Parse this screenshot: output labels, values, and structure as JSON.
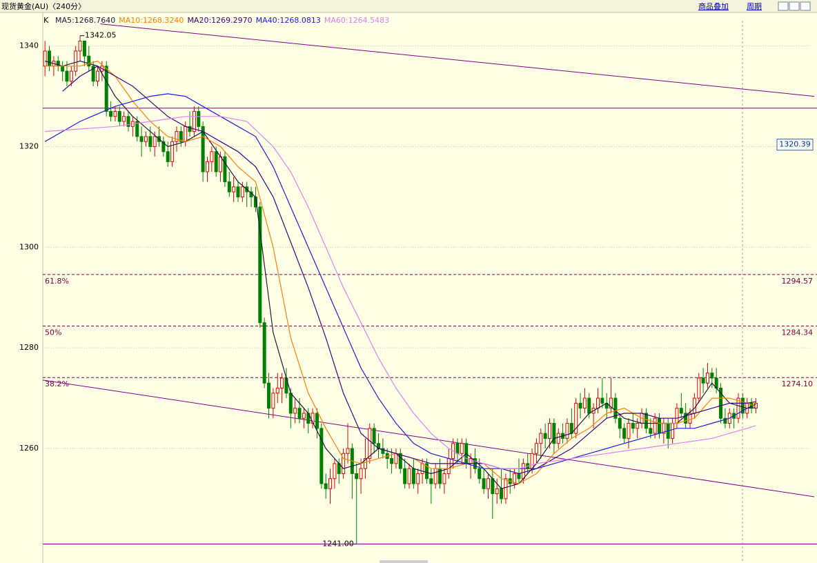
{
  "header": {
    "title": "现货黄金(AU)〈240分〉",
    "buttons": [
      "商品叠加",
      "周期"
    ]
  },
  "chart_data": {
    "type": "candlestick",
    "label": "K",
    "up_color": "#e00000",
    "down_color": "#008000",
    "xlim": [
      -0.5,
      175.3
    ],
    "ylim": [
      1240.8,
      1346.4
    ],
    "yticks": [
      1260,
      1280,
      1300,
      1320,
      1340
    ],
    "grid": true,
    "ohlc": [
      [
        1336,
        1341,
        1334,
        1339
      ],
      [
        1339,
        1340,
        1335,
        1336
      ],
      [
        1336,
        1338,
        1334,
        1337
      ],
      [
        1337,
        1338,
        1335,
        1336
      ],
      [
        1336,
        1337,
        1333,
        1335
      ],
      [
        1335,
        1337,
        1332,
        1333
      ],
      [
        1333,
        1336,
        1332,
        1335
      ],
      [
        1335,
        1340,
        1334,
        1339
      ],
      [
        1339,
        1342.05,
        1337,
        1341
      ],
      [
        1341,
        1341,
        1336,
        1338
      ],
      [
        1338,
        1340,
        1335,
        1336
      ],
      [
        1336,
        1337,
        1332,
        1333
      ],
      [
        1333,
        1336,
        1332,
        1335
      ],
      [
        1335,
        1337,
        1333,
        1336
      ],
      [
        1336,
        1337,
        1326,
        1327
      ],
      [
        1327,
        1329,
        1325,
        1326
      ],
      [
        1326,
        1328,
        1325,
        1327
      ],
      [
        1327,
        1328,
        1324,
        1325
      ],
      [
        1325,
        1327,
        1324,
        1326
      ],
      [
        1326,
        1327,
        1323,
        1324
      ],
      [
        1324,
        1326,
        1322,
        1325
      ],
      [
        1325,
        1326,
        1321,
        1322
      ],
      [
        1322,
        1324,
        1318,
        1321
      ],
      [
        1321,
        1323,
        1320,
        1322
      ],
      [
        1322,
        1324,
        1319,
        1320
      ],
      [
        1320,
        1323,
        1318,
        1322
      ],
      [
        1322,
        1324,
        1320,
        1321
      ],
      [
        1321,
        1322,
        1318,
        1319
      ],
      [
        1319,
        1321,
        1316,
        1317
      ],
      [
        1317,
        1322,
        1316,
        1321
      ],
      [
        1321,
        1324,
        1319,
        1323
      ],
      [
        1323,
        1324,
        1320,
        1321
      ],
      [
        1321,
        1325,
        1320,
        1324
      ],
      [
        1324,
        1327,
        1322,
        1323
      ],
      [
        1323,
        1328,
        1322,
        1327
      ],
      [
        1327,
        1328,
        1323,
        1324
      ],
      [
        1324,
        1325,
        1313,
        1315
      ],
      [
        1315,
        1318,
        1313,
        1317
      ],
      [
        1317,
        1320,
        1315,
        1319
      ],
      [
        1319,
        1320,
        1314,
        1315
      ],
      [
        1315,
        1319,
        1313,
        1318
      ],
      [
        1318,
        1319,
        1312,
        1313
      ],
      [
        1313,
        1315,
        1310,
        1311
      ],
      [
        1311,
        1314,
        1309,
        1312
      ],
      [
        1312,
        1313,
        1309,
        1310
      ],
      [
        1310,
        1313,
        1309,
        1312
      ],
      [
        1312,
        1313,
        1308,
        1311
      ],
      [
        1311,
        1312,
        1308,
        1310
      ],
      [
        1310,
        1312,
        1307,
        1308
      ],
      [
        1308,
        1309,
        1284,
        1285
      ],
      [
        1285,
        1286,
        1272,
        1273
      ],
      [
        1273,
        1275,
        1266,
        1268
      ],
      [
        1268,
        1272,
        1266,
        1271
      ],
      [
        1271,
        1275,
        1269,
        1272
      ],
      [
        1272,
        1275,
        1269,
        1274
      ],
      [
        1274,
        1276,
        1270,
        1271
      ],
      [
        1271,
        1272,
        1264,
        1267
      ],
      [
        1267,
        1270,
        1265,
        1268
      ],
      [
        1268,
        1270,
        1265,
        1266
      ],
      [
        1266,
        1268,
        1264,
        1267
      ],
      [
        1267,
        1268,
        1263,
        1265
      ],
      [
        1265,
        1268,
        1264,
        1267
      ],
      [
        1267,
        1268,
        1262,
        1264
      ],
      [
        1264,
        1265,
        1252,
        1253
      ],
      [
        1253,
        1255,
        1250,
        1252
      ],
      [
        1252,
        1256,
        1249,
        1254
      ],
      [
        1254,
        1258,
        1252,
        1257
      ],
      [
        1257,
        1258,
        1253,
        1255
      ],
      [
        1255,
        1260,
        1254,
        1259
      ],
      [
        1259,
        1265,
        1257,
        1260
      ],
      [
        1260,
        1261,
        1250,
        1255
      ],
      [
        1255,
        1257,
        1241,
        1254
      ],
      [
        1254,
        1258,
        1251,
        1256
      ],
      [
        1256,
        1262,
        1254,
        1258
      ],
      [
        1258,
        1265,
        1257,
        1264
      ],
      [
        1264,
        1265,
        1259,
        1261
      ],
      [
        1261,
        1263,
        1258,
        1260
      ],
      [
        1260,
        1262,
        1258,
        1259
      ],
      [
        1259,
        1260,
        1256,
        1258
      ],
      [
        1258,
        1260,
        1255,
        1257
      ],
      [
        1257,
        1260,
        1256,
        1259
      ],
      [
        1259,
        1260,
        1255,
        1256
      ],
      [
        1256,
        1258,
        1252,
        1253
      ],
      [
        1253,
        1257,
        1252,
        1256
      ],
      [
        1256,
        1258,
        1252,
        1253
      ],
      [
        1253,
        1256,
        1251,
        1255
      ],
      [
        1255,
        1258,
        1253,
        1257
      ],
      [
        1257,
        1258,
        1253,
        1254
      ],
      [
        1254,
        1256,
        1249,
        1253
      ],
      [
        1253,
        1257,
        1252,
        1256
      ],
      [
        1256,
        1258,
        1252,
        1253
      ],
      [
        1253,
        1256,
        1251,
        1255
      ],
      [
        1255,
        1260,
        1254,
        1258
      ],
      [
        1258,
        1262,
        1256,
        1261
      ],
      [
        1261,
        1262,
        1257,
        1259
      ],
      [
        1259,
        1262,
        1257,
        1261
      ],
      [
        1261,
        1262,
        1256,
        1257
      ],
      [
        1257,
        1259,
        1254,
        1258
      ],
      [
        1258,
        1260,
        1255,
        1256
      ],
      [
        1256,
        1258,
        1253,
        1254
      ],
      [
        1254,
        1256,
        1251,
        1252
      ],
      [
        1252,
        1255,
        1250,
        1254
      ],
      [
        1254,
        1256,
        1246,
        1251
      ],
      [
        1251,
        1254,
        1249,
        1252
      ],
      [
        1252,
        1256,
        1249,
        1250
      ],
      [
        1250,
        1255,
        1249,
        1254
      ],
      [
        1254,
        1256,
        1251,
        1253
      ],
      [
        1253,
        1256,
        1252,
        1255
      ],
      [
        1255,
        1258,
        1253,
        1254
      ],
      [
        1254,
        1258,
        1253,
        1257
      ],
      [
        1257,
        1259,
        1255,
        1256
      ],
      [
        1256,
        1260,
        1255,
        1259
      ],
      [
        1259,
        1262,
        1257,
        1261
      ],
      [
        1261,
        1264,
        1258,
        1263
      ],
      [
        1263,
        1265,
        1260,
        1262
      ],
      [
        1262,
        1266,
        1260,
        1265
      ],
      [
        1265,
        1266,
        1259,
        1261
      ],
      [
        1261,
        1264,
        1260,
        1263
      ],
      [
        1263,
        1265,
        1261,
        1262
      ],
      [
        1262,
        1266,
        1261,
        1265
      ],
      [
        1265,
        1268,
        1262,
        1263
      ],
      [
        1263,
        1270,
        1262,
        1269
      ],
      [
        1269,
        1271,
        1266,
        1268
      ],
      [
        1268,
        1272,
        1267,
        1270
      ],
      [
        1270,
        1271,
        1266,
        1267
      ],
      [
        1267,
        1269,
        1264,
        1268
      ],
      [
        1268,
        1272,
        1267,
        1270
      ],
      [
        1270,
        1274,
        1268,
        1269
      ],
      [
        1269,
        1271,
        1266,
        1268
      ],
      [
        1268,
        1274,
        1267,
        1270
      ],
      [
        1270,
        1271,
        1265,
        1266
      ],
      [
        1266,
        1267,
        1262,
        1264
      ],
      [
        1264,
        1265,
        1261,
        1262
      ],
      [
        1262,
        1266,
        1260,
        1265
      ],
      [
        1265,
        1267,
        1263,
        1264
      ],
      [
        1264,
        1266,
        1262,
        1265
      ],
      [
        1265,
        1268,
        1264,
        1267
      ],
      [
        1267,
        1268,
        1263,
        1264
      ],
      [
        1264,
        1266,
        1262,
        1263
      ],
      [
        1263,
        1267,
        1262,
        1266
      ],
      [
        1266,
        1267,
        1262,
        1263
      ],
      [
        1263,
        1266,
        1261,
        1265
      ],
      [
        1265,
        1266,
        1260,
        1262
      ],
      [
        1262,
        1266,
        1261,
        1265
      ],
      [
        1265,
        1269,
        1264,
        1268
      ],
      [
        1268,
        1271,
        1266,
        1267
      ],
      [
        1267,
        1269,
        1264,
        1265
      ],
      [
        1265,
        1268,
        1264,
        1267
      ],
      [
        1267,
        1271,
        1266,
        1270
      ],
      [
        1270,
        1275,
        1269,
        1274
      ],
      [
        1274,
        1276,
        1271,
        1273
      ],
      [
        1273,
        1277,
        1272,
        1275
      ],
      [
        1275,
        1276,
        1272,
        1274
      ],
      [
        1274,
        1276,
        1271,
        1272
      ],
      [
        1272,
        1273,
        1265,
        1266
      ],
      [
        1266,
        1268,
        1264,
        1265
      ],
      [
        1265,
        1268,
        1264,
        1267
      ],
      [
        1267,
        1268,
        1264,
        1266
      ],
      [
        1266,
        1271,
        1265,
        1270
      ],
      [
        1270,
        1271,
        1266,
        1267
      ],
      [
        1267,
        1270,
        1266,
        1269
      ],
      [
        1269,
        1270,
        1267,
        1268
      ],
      [
        1268,
        1270,
        1267,
        1269
      ]
    ],
    "series": [
      {
        "name": "MA5:1268.7640",
        "color": "#1a1a40",
        "x": [
          0,
          4,
          8,
          12,
          16,
          20,
          24,
          28,
          32,
          36,
          40,
          44,
          48,
          52,
          56,
          60,
          64,
          68,
          72,
          76,
          80,
          84,
          88,
          92,
          96,
          100,
          104,
          108,
          112,
          116,
          120,
          124,
          128,
          132,
          136,
          140,
          144,
          148,
          152,
          156,
          160,
          162
        ],
        "values": [
          1337,
          1336,
          1337,
          1336,
          1330,
          1326,
          1323,
          1320,
          1321,
          1323,
          1318,
          1313,
          1310,
          1283,
          1271,
          1267,
          1260,
          1256,
          1257,
          1260,
          1259,
          1256,
          1255,
          1256,
          1259,
          1256,
          1252,
          1253,
          1257,
          1262,
          1263,
          1267,
          1269,
          1266,
          1265,
          1265,
          1265,
          1268,
          1273,
          1269,
          1268,
          1268.764
        ]
      },
      {
        "name": "MA10:1268.3240",
        "color": "#ff8000",
        "x": [
          0,
          4,
          8,
          12,
          16,
          20,
          24,
          28,
          32,
          36,
          40,
          44,
          48,
          52,
          56,
          60,
          64,
          68,
          72,
          76,
          80,
          84,
          88,
          92,
          96,
          100,
          104,
          108,
          112,
          116,
          120,
          124,
          128,
          132,
          136,
          140,
          144,
          148,
          152,
          156,
          160,
          162
        ],
        "values": [
          1336,
          1336,
          1336,
          1337,
          1334,
          1329,
          1325,
          1322,
          1321,
          1322,
          1320,
          1316,
          1313,
          1300,
          1282,
          1271,
          1264,
          1258,
          1257,
          1258,
          1259,
          1258,
          1256,
          1256,
          1257,
          1257,
          1254,
          1253,
          1255,
          1259,
          1262,
          1264,
          1267,
          1268,
          1266,
          1265,
          1265,
          1266,
          1270,
          1270,
          1269,
          1268.324
        ]
      },
      {
        "name": "MA20:1269.2970",
        "color": "#400080",
        "x": [
          4,
          8,
          12,
          16,
          20,
          24,
          28,
          32,
          36,
          40,
          44,
          48,
          52,
          56,
          60,
          64,
          68,
          72,
          76,
          80,
          84,
          88,
          92,
          96,
          100,
          104,
          108,
          112,
          116,
          120,
          124,
          128,
          132,
          136,
          140,
          144,
          148,
          152,
          156,
          160,
          162
        ],
        "values": [
          1331,
          1334,
          1336,
          1334,
          1332,
          1329,
          1326,
          1324,
          1323,
          1321,
          1319,
          1316,
          1310,
          1301,
          1292,
          1282,
          1271,
          1263,
          1260,
          1259,
          1258,
          1257,
          1257,
          1257,
          1257,
          1256,
          1255,
          1256,
          1258,
          1260,
          1263,
          1266,
          1267,
          1267,
          1266,
          1266,
          1267,
          1268,
          1269,
          1269,
          1269.297
        ]
      },
      {
        "name": "MA40:1268.0813",
        "color": "#1c1ce0",
        "x": [
          0,
          8,
          16,
          24,
          28,
          32,
          36,
          40,
          44,
          48,
          52,
          56,
          60,
          64,
          68,
          72,
          76,
          80,
          84,
          88,
          92,
          96,
          100,
          104,
          108,
          112,
          116,
          120,
          124,
          128,
          132,
          136,
          140,
          144,
          148,
          152,
          156,
          160,
          162
        ],
        "values": [
          1321,
          1325,
          1328,
          1330,
          1330.5,
          1330,
          1328,
          1326,
          1324,
          1322,
          1316,
          1308,
          1300,
          1292,
          1284,
          1276,
          1270,
          1265,
          1261,
          1259,
          1258,
          1257,
          1256,
          1256,
          1256,
          1256,
          1257,
          1258,
          1259,
          1260,
          1261,
          1262,
          1263,
          1264,
          1264,
          1265,
          1266,
          1268,
          1268.0813
        ]
      },
      {
        "name": "MA60:1264.5483",
        "color": "#e080f0",
        "x": [
          0,
          8,
          16,
          24,
          32,
          40,
          46,
          52,
          56,
          60,
          64,
          68,
          72,
          76,
          80,
          84,
          88,
          92,
          96,
          100,
          104,
          108,
          112,
          116,
          120,
          124,
          128,
          132,
          136,
          140,
          144,
          148,
          152,
          156,
          160,
          162
        ],
        "values": [
          1323,
          1323.5,
          1324,
          1325,
          1326,
          1326,
          1325,
          1320,
          1315,
          1308,
          1300,
          1292,
          1285,
          1278,
          1272,
          1267,
          1263,
          1260,
          1258,
          1257,
          1256,
          1256,
          1257,
          1257.5,
          1258,
          1258.5,
          1259,
          1259.5,
          1260,
          1260.5,
          1261,
          1261.5,
          1262,
          1263,
          1264,
          1264.5483
        ]
      }
    ],
    "trend_lines": [
      {
        "color": "#800080",
        "x": [
          12.6,
          175.3
        ],
        "values": [
          1344.4,
          1330
        ]
      },
      {
        "color": "#800080",
        "x": [
          -0.5,
          175.3
        ],
        "values": [
          1273.6,
          1250.4
        ]
      }
    ],
    "hlines": [
      {
        "color": "#800080",
        "value": 1327.65
      },
      {
        "color": "#800080",
        "value": 1241
      }
    ],
    "fib": [
      {
        "name": "61.8%",
        "level": 1294.57
      },
      {
        "name": "50%",
        "level": 1284.34
      },
      {
        "name": "38.2%",
        "level": {
          "value": 1274.1,
          "label": "1274.10"
        }
      }
    ],
    "annotations": [
      {
        "x": 8,
        "value": 1342.05
      },
      {
        "x": 71,
        "value": {
          "value": 1241,
          "label": "1241.00"
        }
      }
    ],
    "cursor_price": 1320.39
  }
}
